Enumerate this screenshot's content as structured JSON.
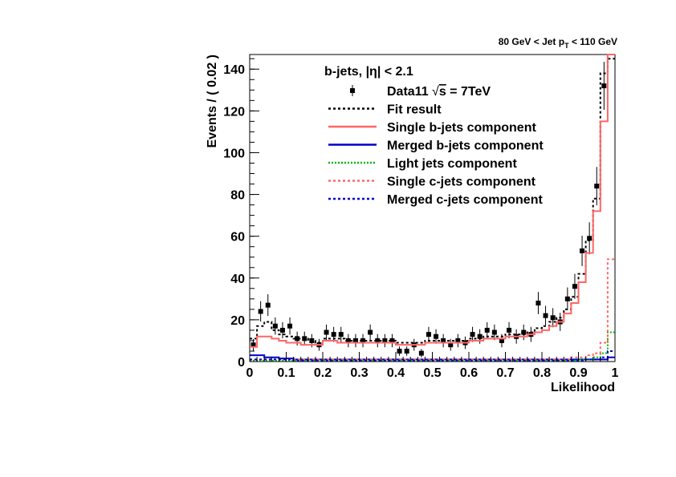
{
  "chart_data": {
    "type": "line",
    "title": "80 GeV < Jet p_T < 110 GeV",
    "title_parts": {
      "pre": "80 GeV < Jet p",
      "sub": "T",
      "post": " < 110 GeV"
    },
    "xlabel": "Likelihood",
    "ylabel": "Events / ( 0.02 )",
    "xlim": [
      0,
      1
    ],
    "ylim": [
      0,
      147
    ],
    "legend_header": "b-jets, |η| < 2.1",
    "legend_position": "top-center",
    "x_ticks": [
      "0",
      "0.1",
      "0.2",
      "0.3",
      "0.4",
      "0.5",
      "0.6",
      "0.7",
      "0.8",
      "0.9",
      "1"
    ],
    "y_ticks": [
      "0",
      "20",
      "40",
      "60",
      "80",
      "100",
      "120",
      "140"
    ],
    "bin_edges": [
      0,
      0.02,
      0.04,
      0.06,
      0.08,
      0.1,
      0.12,
      0.14,
      0.16,
      0.18,
      0.2,
      0.22,
      0.24,
      0.26,
      0.28,
      0.3,
      0.32,
      0.34,
      0.36,
      0.38,
      0.4,
      0.42,
      0.44,
      0.46,
      0.48,
      0.5,
      0.52,
      0.54,
      0.56,
      0.58,
      0.6,
      0.62,
      0.64,
      0.66,
      0.68,
      0.7,
      0.72,
      0.74,
      0.76,
      0.78,
      0.8,
      0.82,
      0.84,
      0.86,
      0.88,
      0.9,
      0.92,
      0.94,
      0.96,
      0.98,
      1.0
    ],
    "series": [
      {
        "name": "Data11 √s = 7TeV",
        "label_pre": "Data11 ",
        "label_sqrt": "s",
        "label_post": " = 7TeV",
        "kind": "points",
        "color": "#000000",
        "x": [
          0.01,
          0.03,
          0.05,
          0.07,
          0.09,
          0.11,
          0.13,
          0.15,
          0.17,
          0.19,
          0.21,
          0.23,
          0.25,
          0.27,
          0.29,
          0.31,
          0.33,
          0.35,
          0.37,
          0.39,
          0.41,
          0.43,
          0.45,
          0.47,
          0.49,
          0.51,
          0.53,
          0.55,
          0.57,
          0.59,
          0.61,
          0.63,
          0.65,
          0.67,
          0.69,
          0.71,
          0.73,
          0.75,
          0.77,
          0.79,
          0.81,
          0.83,
          0.85,
          0.87,
          0.89,
          0.91,
          0.93,
          0.95,
          0.97
        ],
        "values": [
          8,
          24,
          27,
          17,
          15,
          17,
          11,
          11,
          10,
          8,
          14,
          13,
          13,
          10,
          10,
          10,
          14,
          10,
          10,
          10,
          5,
          5,
          8,
          4,
          13,
          12,
          10,
          8,
          10,
          9,
          13,
          12,
          15,
          14,
          10,
          15,
          12,
          14,
          13,
          28,
          22,
          21,
          19,
          30,
          36,
          53,
          59,
          84,
          132
        ]
      },
      {
        "name": "Fit result",
        "kind": "step",
        "color": "#000000",
        "dash": "3,3",
        "values": [
          11,
          17,
          19,
          15,
          13,
          12,
          11,
          11,
          10,
          9,
          11,
          11,
          11,
          10,
          10,
          10,
          10,
          10,
          10,
          10,
          9,
          9,
          9,
          9,
          10,
          10,
          10,
          10,
          10,
          10,
          11,
          11,
          12,
          12,
          12,
          13,
          13,
          13,
          14,
          16,
          17,
          19,
          21,
          25,
          31,
          42,
          58,
          78,
          138,
          145
        ]
      },
      {
        "name": "Single b-jets component",
        "kind": "step",
        "color": "#ff6666",
        "dash": "",
        "values": [
          7,
          12,
          12,
          11,
          10,
          9,
          9,
          8,
          8,
          8,
          10,
          10,
          9,
          9,
          9,
          9,
          9,
          9,
          9,
          9,
          8,
          8,
          8,
          8,
          9,
          9,
          9,
          9,
          9,
          9,
          10,
          10,
          11,
          11,
          11,
          12,
          12,
          12,
          13,
          14,
          15,
          17,
          19,
          23,
          28,
          38,
          52,
          72,
          115,
          147
        ]
      },
      {
        "name": "Merged b-jets component",
        "kind": "step",
        "color": "#0000cc",
        "dash": "",
        "values": [
          3,
          3,
          2,
          2,
          1.5,
          1.5,
          1,
          1,
          1,
          1,
          1,
          1,
          1,
          1,
          1,
          1,
          1,
          1,
          1,
          1,
          1,
          1,
          1,
          1,
          1,
          1,
          1,
          1,
          1,
          1,
          1,
          1,
          1,
          1,
          1,
          1,
          1,
          1,
          1,
          1,
          1,
          1,
          1,
          1,
          1,
          1,
          1,
          1,
          1,
          2
        ]
      },
      {
        "name": "Light jets component",
        "kind": "step",
        "color": "#00bb00",
        "dash": "2,2",
        "values": [
          0.5,
          0.5,
          0.5,
          0.5,
          0.5,
          0.5,
          0.5,
          0.5,
          0.5,
          0.5,
          0.5,
          0.5,
          0.5,
          0.5,
          0.5,
          0.5,
          0.5,
          0.5,
          0.5,
          0.5,
          0.5,
          0.5,
          0.5,
          0.5,
          0.5,
          0.5,
          0.5,
          0.5,
          0.5,
          0.5,
          0.5,
          0.5,
          0.5,
          0.5,
          0.5,
          0.5,
          0.5,
          0.5,
          0.5,
          0.5,
          0.5,
          0.5,
          0.5,
          0.5,
          0.5,
          1,
          1,
          2,
          4,
          14
        ]
      },
      {
        "name": "Single c-jets component",
        "kind": "step",
        "color": "#ff6666",
        "dash": "3,3",
        "values": [
          1,
          1,
          1,
          1,
          1,
          1,
          1,
          1,
          1,
          1,
          1,
          1,
          1,
          1,
          1,
          1,
          1,
          1,
          1,
          1,
          1,
          1,
          1,
          1,
          1,
          1,
          1,
          1,
          1,
          1,
          1,
          1,
          1,
          1,
          1,
          1,
          1,
          1,
          1,
          1,
          1,
          1,
          1,
          1,
          2,
          2,
          3,
          4,
          9,
          49
        ]
      },
      {
        "name": "Merged c-jets component",
        "kind": "step",
        "color": "#0000cc",
        "dash": "3,3",
        "values": [
          1,
          1,
          1,
          1,
          1,
          1,
          0.5,
          0.5,
          0.5,
          0.5,
          0.5,
          0.5,
          0.5,
          0.5,
          0.5,
          0.5,
          0.5,
          0.5,
          0.5,
          0.5,
          0.5,
          0.5,
          0.5,
          0.5,
          0.5,
          0.5,
          0.5,
          0.5,
          0.5,
          0.5,
          0.5,
          0.5,
          0.5,
          0.5,
          0.5,
          0.5,
          0.5,
          0.5,
          0.5,
          0.5,
          0.5,
          0.5,
          0.5,
          0.5,
          0.5,
          0.5,
          1,
          1,
          2,
          5
        ]
      }
    ]
  }
}
